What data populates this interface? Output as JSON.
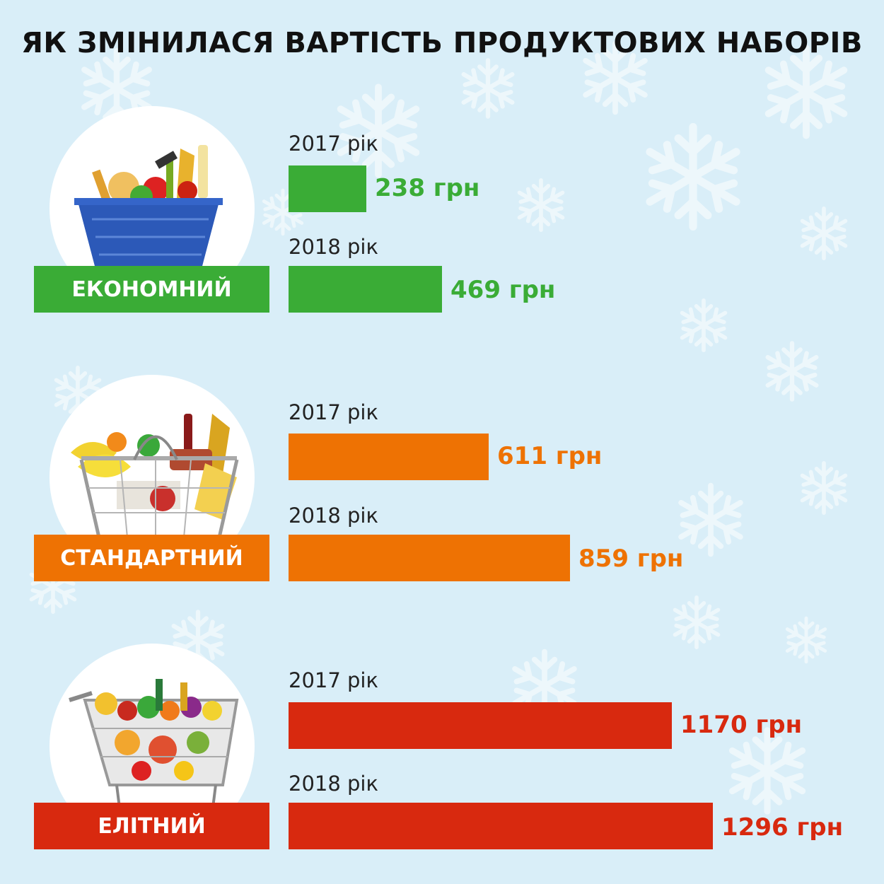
{
  "title": "ЯК ЗМІНИЛАСЯ ВАРТІСТЬ ПРОДУКТОВИХ НАБОРІВ",
  "colors": {
    "background": "#d9eef8",
    "economy": "#3aac36",
    "standard": "#ee7203",
    "elite": "#d8290f"
  },
  "icons": [
    "shopping-basket-icon",
    "wire-basket-icon",
    "shopping-cart-icon",
    "snowflake-icon"
  ],
  "chart_data": {
    "type": "bar",
    "orientation": "horizontal",
    "title": "ЯК ЗМІНИЛАСЯ ВАРТІСТЬ ПРОДУКТОВИХ НАБОРІВ",
    "unit": "грн",
    "groups": [
      {
        "key": "economy",
        "name": "ЕКОНОМНИЙ",
        "color": "#3aac36",
        "bars": [
          {
            "year_label": "2017 рік",
            "value": 238,
            "value_label": "238 грн"
          },
          {
            "year_label": "2018 рік",
            "value": 469,
            "value_label": "469 грн"
          }
        ]
      },
      {
        "key": "standard",
        "name": "СТАНДАРТНИЙ",
        "color": "#ee7203",
        "bars": [
          {
            "year_label": "2017 рік",
            "value": 611,
            "value_label": "611 грн"
          },
          {
            "year_label": "2018 рік",
            "value": 859,
            "value_label": "859 грн"
          }
        ]
      },
      {
        "key": "elite",
        "name": "ЕЛІТНИЙ",
        "color": "#d8290f",
        "bars": [
          {
            "year_label": "2017 рік",
            "value": 1170,
            "value_label": "1170 грн"
          },
          {
            "year_label": "2018 рік",
            "value": 1296,
            "value_label": "1296 грн"
          }
        ]
      }
    ]
  }
}
